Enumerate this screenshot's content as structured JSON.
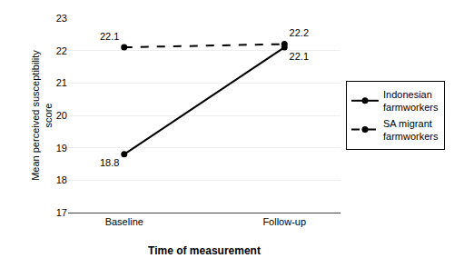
{
  "chart_data": {
    "type": "line",
    "categories": [
      "Baseline",
      "Follow-up"
    ],
    "series": [
      {
        "name": "Indonesian\nfarmworkers",
        "color": "#000000",
        "values": [
          18.8,
          22.1
        ],
        "marker": "circle",
        "line_style": "solid"
      },
      {
        "name": "SA migrant\nfarmworkers",
        "color": "#000000",
        "values": [
          22.1,
          22.2
        ],
        "marker": "circle",
        "line_style": "dashed"
      }
    ],
    "xlabel": "Time of measurement",
    "ylabel": "Mean perceived susceptibility\nscore",
    "ylim": [
      17,
      23
    ],
    "yticks": [
      17,
      18,
      19,
      20,
      21,
      22,
      23
    ],
    "grid": true,
    "legend": "right",
    "data_labels": true
  }
}
